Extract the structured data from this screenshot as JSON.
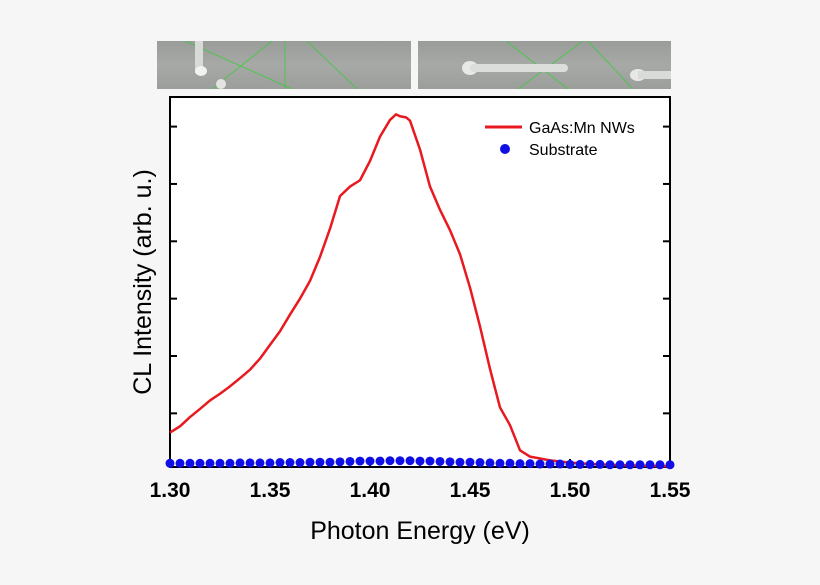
{
  "colors": {
    "red": "#e8191f",
    "blue": "#1010e6",
    "green": "#3ccb3c"
  },
  "insets": [
    {
      "name": "sem-image-left"
    },
    {
      "name": "sem-image-right"
    }
  ],
  "chart_data": {
    "type": "line",
    "title": "",
    "xlabel": "Photon Energy (eV)",
    "ylabel": "CL Intensity (arb. u.)",
    "xlim": [
      1.3,
      1.55
    ],
    "ylim": [
      0,
      1.0
    ],
    "xticks": [
      1.3,
      1.35,
      1.4,
      1.45,
      1.5,
      1.55
    ],
    "xtick_labels": [
      "1.30",
      "1.35",
      "1.40",
      "1.45",
      "1.50",
      "1.55"
    ],
    "yticks_minor": [
      0.145,
      0.3,
      0.455,
      0.61,
      0.765,
      0.92
    ],
    "grid": false,
    "legend_position": "top-right",
    "series": [
      {
        "name": "GaAs:Mn NWs",
        "color": "#e8191f",
        "style": "line",
        "x": [
          1.3,
          1.305,
          1.31,
          1.315,
          1.32,
          1.325,
          1.33,
          1.335,
          1.34,
          1.345,
          1.35,
          1.355,
          1.36,
          1.365,
          1.37,
          1.375,
          1.38,
          1.385,
          1.39,
          1.395,
          1.4,
          1.405,
          1.41,
          1.413,
          1.415,
          1.418,
          1.42,
          1.425,
          1.43,
          1.435,
          1.44,
          1.445,
          1.45,
          1.455,
          1.46,
          1.465,
          1.47,
          1.475,
          1.48,
          1.49,
          1.5,
          1.51,
          1.52,
          1.53,
          1.54,
          1.55
        ],
        "y": [
          0.093,
          0.11,
          0.135,
          0.157,
          0.18,
          0.198,
          0.218,
          0.24,
          0.263,
          0.293,
          0.33,
          0.367,
          0.412,
          0.455,
          0.503,
          0.568,
          0.644,
          0.732,
          0.758,
          0.775,
          0.827,
          0.893,
          0.938,
          0.953,
          0.948,
          0.945,
          0.936,
          0.858,
          0.758,
          0.695,
          0.64,
          0.575,
          0.485,
          0.38,
          0.265,
          0.161,
          0.113,
          0.045,
          0.028,
          0.018,
          0.012,
          0.008,
          0.006,
          0.004,
          0.003,
          0.002
        ]
      },
      {
        "name": "Substrate",
        "color": "#1010e6",
        "style": "markers",
        "x": [
          1.3,
          1.305,
          1.31,
          1.315,
          1.32,
          1.325,
          1.33,
          1.335,
          1.34,
          1.345,
          1.35,
          1.355,
          1.36,
          1.365,
          1.37,
          1.375,
          1.38,
          1.385,
          1.39,
          1.395,
          1.4,
          1.405,
          1.41,
          1.415,
          1.42,
          1.425,
          1.43,
          1.435,
          1.44,
          1.445,
          1.45,
          1.455,
          1.46,
          1.465,
          1.47,
          1.475,
          1.48,
          1.485,
          1.49,
          1.495,
          1.5,
          1.505,
          1.51,
          1.515,
          1.52,
          1.525,
          1.53,
          1.535,
          1.54,
          1.545,
          1.55
        ],
        "y": [
          0.01,
          0.01,
          0.01,
          0.01,
          0.01,
          0.01,
          0.01,
          0.011,
          0.011,
          0.011,
          0.011,
          0.012,
          0.012,
          0.012,
          0.013,
          0.013,
          0.013,
          0.014,
          0.015,
          0.016,
          0.016,
          0.016,
          0.017,
          0.017,
          0.017,
          0.016,
          0.016,
          0.015,
          0.014,
          0.013,
          0.013,
          0.012,
          0.011,
          0.01,
          0.01,
          0.009,
          0.009,
          0.008,
          0.008,
          0.008,
          0.007,
          0.007,
          0.007,
          0.007,
          0.006,
          0.006,
          0.006,
          0.006,
          0.006,
          0.006,
          0.006
        ]
      }
    ]
  }
}
